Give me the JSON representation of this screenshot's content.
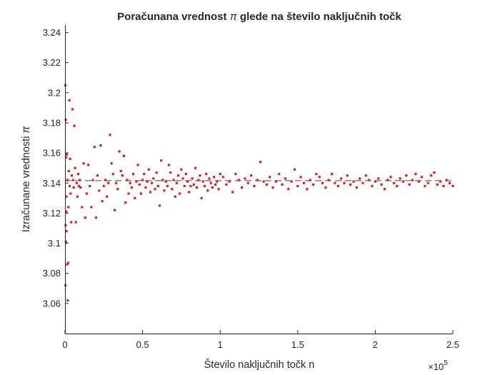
{
  "chart_data": {
    "type": "scatter",
    "title_prefix": "Poračunana vrednost ",
    "title_symbol": "π",
    "title_suffix": " glede na število naključnih točk",
    "xlabel": "Število naključnih točk n",
    "ylabel_prefix": "Izračunane vrednosti ",
    "ylabel_symbol": "π",
    "x_exponent_base": "×10",
    "x_exponent": "5",
    "xlim": [
      0,
      250000
    ],
    "ylim": [
      3.04,
      3.245
    ],
    "x_tick_values": [
      0,
      50000,
      100000,
      150000,
      200000,
      250000
    ],
    "x_tick_labels": [
      "0",
      "0.5",
      "1",
      "1.5",
      "2",
      "2.5"
    ],
    "y_tick_values": [
      3.06,
      3.08,
      3.1,
      3.12,
      3.14,
      3.16,
      3.18,
      3.2,
      3.22,
      3.24
    ],
    "y_tick_labels": [
      "3.06",
      "3.08",
      "3.1",
      "3.12",
      "3.14",
      "3.16",
      "3.18",
      "3.2",
      "3.22",
      "3.24"
    ],
    "reference_line": {
      "y": 3.14159,
      "style": "dashed",
      "color": "#808080"
    },
    "marker_color": "#e41a1c",
    "grid": false,
    "series": [
      {
        "points": [
          [
            200,
            3.205
          ],
          [
            300,
            3.072
          ],
          [
            400,
            3.112
          ],
          [
            500,
            3.182
          ],
          [
            600,
            3.101
          ],
          [
            700,
            3.157
          ],
          [
            800,
            3.121
          ],
          [
            900,
            3.131
          ],
          [
            1000,
            3.108
          ],
          [
            1200,
            3.159
          ],
          [
            1400,
            3.086
          ],
          [
            1600,
            3.142
          ],
          [
            1800,
            3.062
          ],
          [
            2000,
            3.087
          ],
          [
            2200,
            3.124
          ],
          [
            2500,
            3.148
          ],
          [
            2800,
            3.195
          ],
          [
            3000,
            3.138
          ],
          [
            3300,
            3.156
          ],
          [
            3600,
            3.133
          ],
          [
            4000,
            3.114
          ],
          [
            4400,
            3.145
          ],
          [
            4800,
            3.189
          ],
          [
            5200,
            3.142
          ],
          [
            5600,
            3.137
          ],
          [
            6000,
            3.178
          ],
          [
            6500,
            3.15
          ],
          [
            7000,
            3.114
          ],
          [
            7500,
            3.14
          ],
          [
            8000,
            3.131
          ],
          [
            8500,
            3.146
          ],
          [
            9000,
            3.138
          ],
          [
            9500,
            3.142
          ],
          [
            10000,
            3.137
          ],
          [
            11000,
            3.124
          ],
          [
            12000,
            3.153
          ],
          [
            13000,
            3.117
          ],
          [
            14000,
            3.133
          ],
          [
            15000,
            3.152
          ],
          [
            16000,
            3.138
          ],
          [
            17000,
            3.124
          ],
          [
            18000,
            3.142
          ],
          [
            19000,
            3.164
          ],
          [
            20000,
            3.117
          ],
          [
            21000,
            3.145
          ],
          [
            22000,
            3.135
          ],
          [
            23000,
            3.165
          ],
          [
            24000,
            3.128
          ],
          [
            25000,
            3.138
          ],
          [
            26000,
            3.142
          ],
          [
            27000,
            3.131
          ],
          [
            28000,
            3.14
          ],
          [
            29000,
            3.172
          ],
          [
            30000,
            3.153
          ],
          [
            31000,
            3.146
          ],
          [
            32000,
            3.122
          ],
          [
            33000,
            3.14
          ],
          [
            34000,
            3.136
          ],
          [
            35000,
            3.161
          ],
          [
            36000,
            3.148
          ],
          [
            37000,
            3.145
          ],
          [
            38000,
            3.158
          ],
          [
            39000,
            3.127
          ],
          [
            40000,
            3.142
          ],
          [
            41000,
            3.133
          ],
          [
            42000,
            3.14
          ],
          [
            43000,
            3.137
          ],
          [
            44000,
            3.146
          ],
          [
            45000,
            3.13
          ],
          [
            46000,
            3.141
          ],
          [
            47000,
            3.152
          ],
          [
            48000,
            3.139
          ],
          [
            49000,
            3.133
          ],
          [
            50000,
            3.142
          ],
          [
            51000,
            3.146
          ],
          [
            52000,
            3.137
          ],
          [
            53000,
            3.141
          ],
          [
            54000,
            3.149
          ],
          [
            55000,
            3.134
          ],
          [
            56000,
            3.14
          ],
          [
            57000,
            3.143
          ],
          [
            58000,
            3.136
          ],
          [
            59000,
            3.147
          ],
          [
            60000,
            3.138
          ],
          [
            61000,
            3.125
          ],
          [
            62000,
            3.155
          ],
          [
            63000,
            3.142
          ],
          [
            64000,
            3.135
          ],
          [
            65000,
            3.141
          ],
          [
            66000,
            3.138
          ],
          [
            67000,
            3.152
          ],
          [
            68000,
            3.147
          ],
          [
            69000,
            3.136
          ],
          [
            70000,
            3.142
          ],
          [
            71000,
            3.131
          ],
          [
            72000,
            3.14
          ],
          [
            73000,
            3.145
          ],
          [
            74000,
            3.133
          ],
          [
            75000,
            3.149
          ],
          [
            76000,
            3.143
          ],
          [
            77000,
            3.138
          ],
          [
            78000,
            3.146
          ],
          [
            79000,
            3.141
          ],
          [
            80000,
            3.134
          ],
          [
            81000,
            3.138
          ],
          [
            82000,
            3.143
          ],
          [
            83000,
            3.139
          ],
          [
            84000,
            3.15
          ],
          [
            85000,
            3.137
          ],
          [
            86000,
            3.142
          ],
          [
            87000,
            3.145
          ],
          [
            88000,
            3.13
          ],
          [
            89000,
            3.141
          ],
          [
            90000,
            3.138
          ],
          [
            91000,
            3.146
          ],
          [
            92000,
            3.135
          ],
          [
            93000,
            3.143
          ],
          [
            94000,
            3.14
          ],
          [
            95000,
            3.137
          ],
          [
            96000,
            3.144
          ],
          [
            97000,
            3.139
          ],
          [
            98000,
            3.141
          ],
          [
            99000,
            3.136
          ],
          [
            100000,
            3.146
          ],
          [
            102000,
            3.144
          ],
          [
            104000,
            3.139
          ],
          [
            106000,
            3.141
          ],
          [
            108000,
            3.134
          ],
          [
            110000,
            3.146
          ],
          [
            112000,
            3.142
          ],
          [
            114000,
            3.137
          ],
          [
            116000,
            3.143
          ],
          [
            118000,
            3.14
          ],
          [
            120000,
            3.145
          ],
          [
            122000,
            3.138
          ],
          [
            124000,
            3.142
          ],
          [
            126000,
            3.154
          ],
          [
            128000,
            3.141
          ],
          [
            130000,
            3.139
          ],
          [
            132000,
            3.144
          ],
          [
            134000,
            3.137
          ],
          [
            136000,
            3.141
          ],
          [
            138000,
            3.146
          ],
          [
            140000,
            3.139
          ],
          [
            142000,
            3.143
          ],
          [
            144000,
            3.136
          ],
          [
            146000,
            3.141
          ],
          [
            148000,
            3.149
          ],
          [
            150000,
            3.138
          ],
          [
            152000,
            3.144
          ],
          [
            154000,
            3.14
          ],
          [
            156000,
            3.136
          ],
          [
            158000,
            3.142
          ],
          [
            160000,
            3.139
          ],
          [
            162000,
            3.146
          ],
          [
            164000,
            3.144
          ],
          [
            166000,
            3.14
          ],
          [
            168000,
            3.137
          ],
          [
            170000,
            3.142
          ],
          [
            172000,
            3.146
          ],
          [
            174000,
            3.14
          ],
          [
            176000,
            3.138
          ],
          [
            178000,
            3.143
          ],
          [
            180000,
            3.14
          ],
          [
            182000,
            3.145
          ],
          [
            184000,
            3.139
          ],
          [
            186000,
            3.141
          ],
          [
            188000,
            3.137
          ],
          [
            190000,
            3.143
          ],
          [
            192000,
            3.14
          ],
          [
            194000,
            3.145
          ],
          [
            196000,
            3.142
          ],
          [
            198000,
            3.138
          ],
          [
            200000,
            3.141
          ],
          [
            202000,
            3.143
          ],
          [
            204000,
            3.139
          ],
          [
            206000,
            3.136
          ],
          [
            208000,
            3.142
          ],
          [
            210000,
            3.144
          ],
          [
            212000,
            3.14
          ],
          [
            214000,
            3.138
          ],
          [
            216000,
            3.143
          ],
          [
            218000,
            3.141
          ],
          [
            220000,
            3.145
          ],
          [
            222000,
            3.139
          ],
          [
            224000,
            3.142
          ],
          [
            226000,
            3.146
          ],
          [
            228000,
            3.141
          ],
          [
            230000,
            3.144
          ],
          [
            232000,
            3.138
          ],
          [
            234000,
            3.14
          ],
          [
            236000,
            3.145
          ],
          [
            238000,
            3.147
          ],
          [
            240000,
            3.139
          ],
          [
            242000,
            3.141
          ],
          [
            244000,
            3.138
          ],
          [
            246000,
            3.142
          ],
          [
            248000,
            3.14
          ],
          [
            250000,
            3.138
          ]
        ]
      }
    ]
  }
}
